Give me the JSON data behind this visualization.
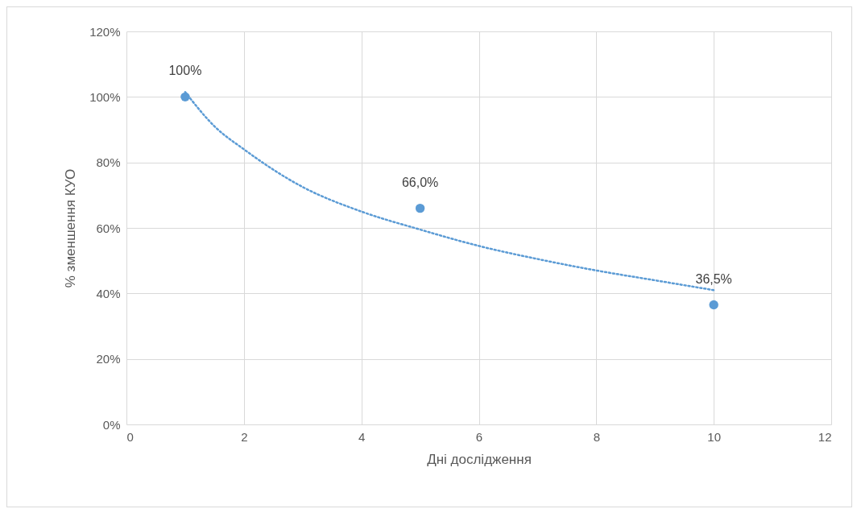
{
  "chart_data": {
    "type": "scatter",
    "xlabel": "Дні дослідження",
    "ylabel": "% зменшення КУО",
    "series": [
      {
        "color": "#5b9bd5",
        "marker": "circle",
        "x": [
          1,
          5,
          10
        ],
        "values": [
          100,
          66,
          36.5
        ],
        "value_labels": [
          "100%",
          "66,0%",
          "36,5%"
        ]
      },
      {
        "type": "line",
        "color": "#5b9bd5",
        "line_style": "dotted",
        "x": [
          1,
          1.5,
          2,
          3,
          4,
          5,
          6,
          7,
          8,
          9,
          10
        ],
        "values": [
          101.5,
          91,
          84,
          72.5,
          65,
          59.5,
          54.5,
          50.5,
          47,
          44,
          41
        ]
      }
    ],
    "grid": true,
    "xlim": [
      0,
      12
    ],
    "xticks": [
      0,
      2,
      4,
      6,
      8,
      10,
      12
    ],
    "ylim": [
      0,
      120
    ],
    "yticks": [
      {
        "value": 0,
        "label": "0%"
      },
      {
        "value": 20,
        "label": "20%"
      },
      {
        "value": 40,
        "label": "40%"
      },
      {
        "value": 60,
        "label": "60%"
      },
      {
        "value": 80,
        "label": "80%"
      },
      {
        "value": 100,
        "label": "100%"
      },
      {
        "value": 120,
        "label": "120%"
      }
    ]
  }
}
